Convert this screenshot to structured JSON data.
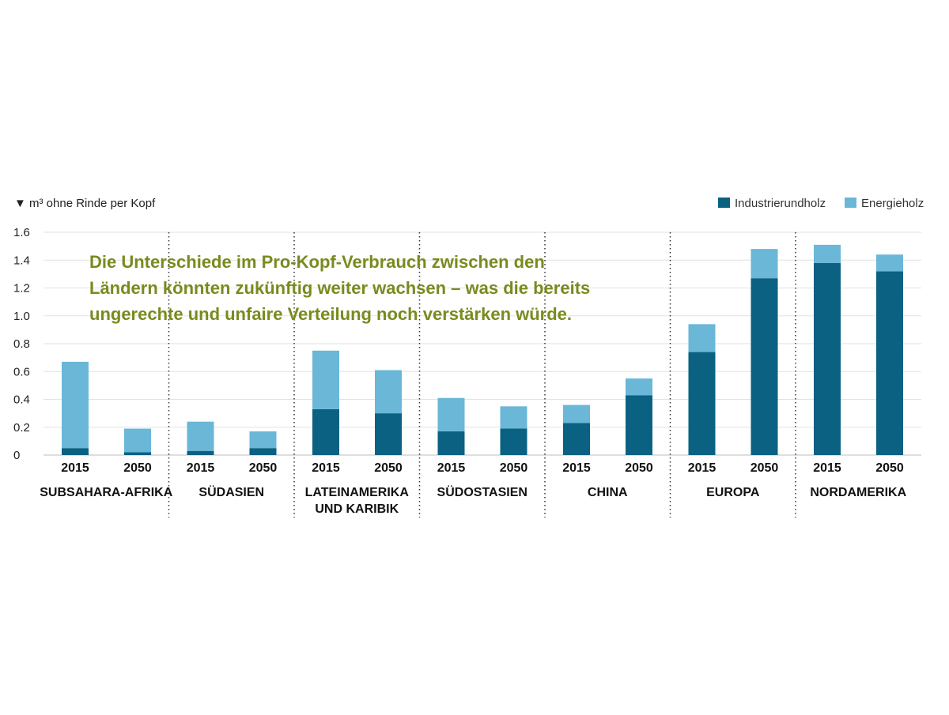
{
  "chart_data": {
    "type": "bar",
    "stacked": true,
    "ylabel": "m³ ohne Rinde per Kopf",
    "ylabel_marker": "▼",
    "ylim": [
      0,
      1.6
    ],
    "yticks": [
      "0",
      "0.2",
      "0.4",
      "0.6",
      "0.8",
      "1.0",
      "1.2",
      "1.4",
      "1.6"
    ],
    "grid": true,
    "legend_position": "top-right",
    "colors": {
      "Industrierundholz": "#0a6182",
      "Energieholz": "#6ab7d8"
    },
    "annotation": [
      "Die Unterschiede im Pro-Kopf-Verbrauch zwischen den",
      "Ländern könnten zukünftig weiter wachsen – was die bereits",
      "ungerechte und unfaire Verteilung noch verstärken würde."
    ],
    "groups": [
      {
        "region": [
          "SUBSAHARA-AFRIKA"
        ],
        "years": [
          "2015",
          "2050"
        ],
        "Industrierundholz": [
          0.05,
          0.02
        ],
        "Energieholz": [
          0.62,
          0.17
        ]
      },
      {
        "region": [
          "SÜDASIEN"
        ],
        "years": [
          "2015",
          "2050"
        ],
        "Industrierundholz": [
          0.03,
          0.05
        ],
        "Energieholz": [
          0.21,
          0.12
        ]
      },
      {
        "region": [
          "LATEINAMERIKA",
          "UND KARIBIK"
        ],
        "years": [
          "2015",
          "2050"
        ],
        "Industrierundholz": [
          0.33,
          0.3
        ],
        "Energieholz": [
          0.42,
          0.31
        ]
      },
      {
        "region": [
          "SÜDOSTASIEN"
        ],
        "years": [
          "2015",
          "2050"
        ],
        "Industrierundholz": [
          0.17,
          0.19
        ],
        "Energieholz": [
          0.24,
          0.16
        ]
      },
      {
        "region": [
          "CHINA"
        ],
        "years": [
          "2015",
          "2050"
        ],
        "Industrierundholz": [
          0.23,
          0.43
        ],
        "Energieholz": [
          0.13,
          0.12
        ]
      },
      {
        "region": [
          "EUROPA"
        ],
        "years": [
          "2015",
          "2050"
        ],
        "Industrierundholz": [
          0.74,
          1.27
        ],
        "Energieholz": [
          0.2,
          0.21
        ]
      },
      {
        "region": [
          "NORDAMERIKA"
        ],
        "years": [
          "2015",
          "2050"
        ],
        "Industrierundholz": [
          1.38,
          1.32
        ],
        "Energieholz": [
          0.13,
          0.12
        ]
      }
    ],
    "series": [
      {
        "name": "Industrierundholz"
      },
      {
        "name": "Energieholz"
      }
    ]
  }
}
